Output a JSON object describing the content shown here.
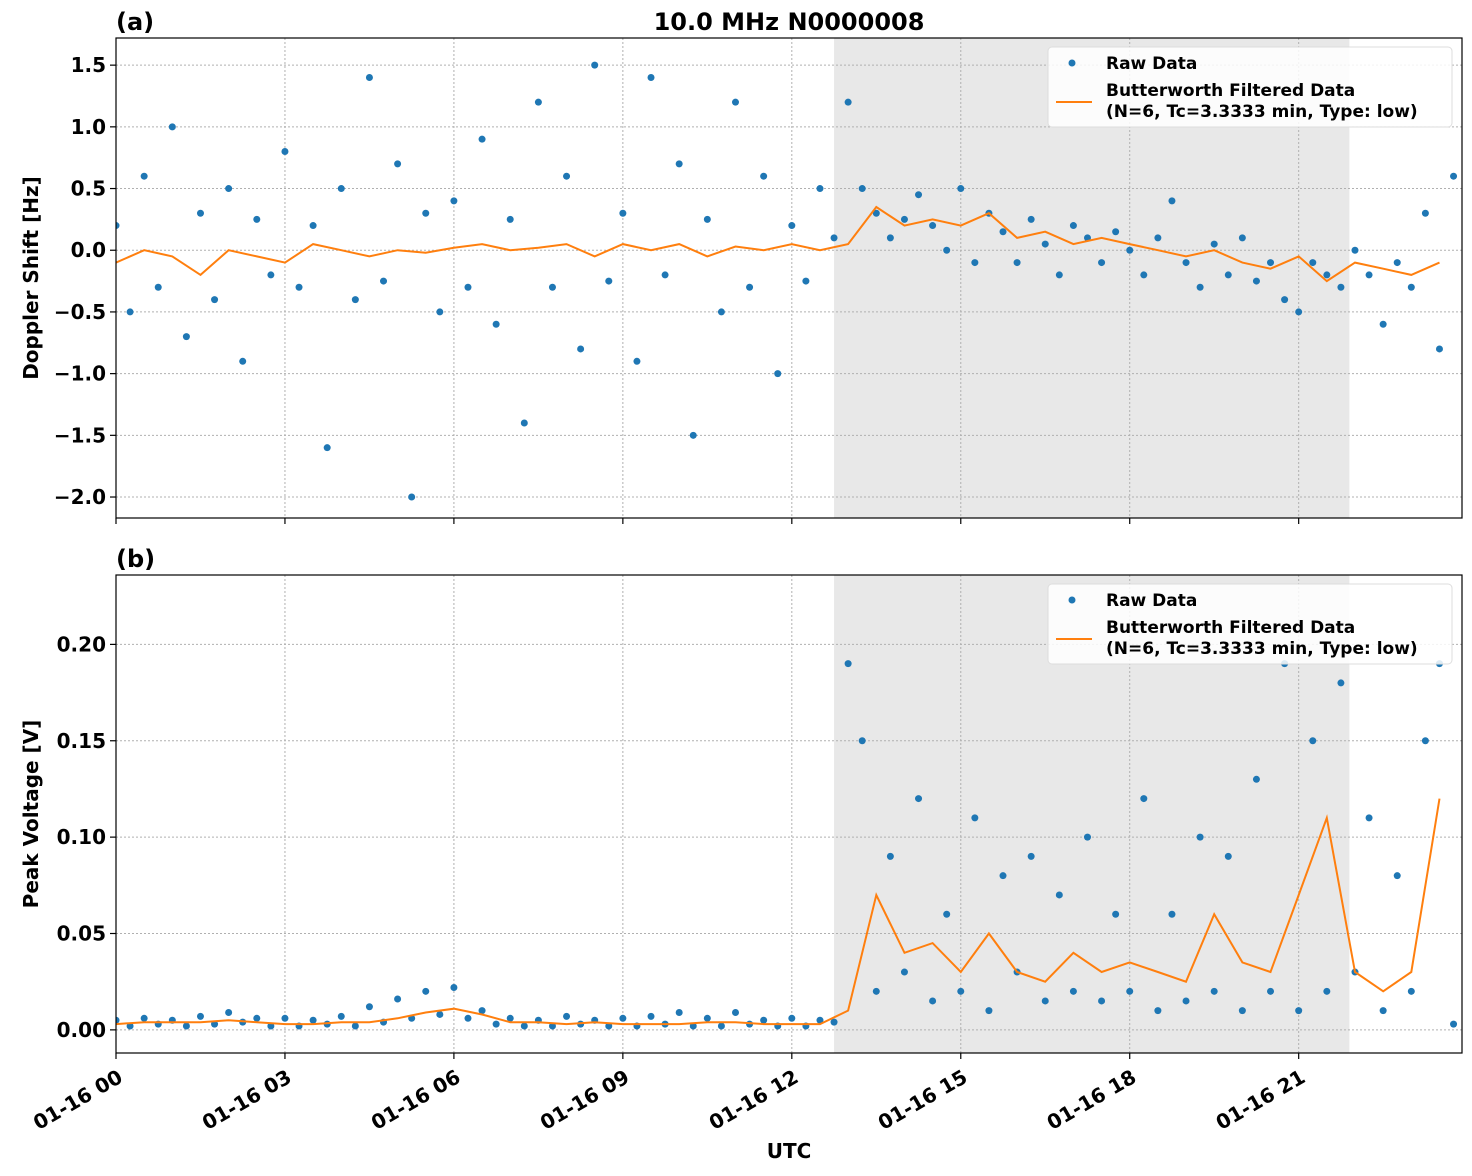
{
  "chart_data": [
    {
      "type": "line",
      "panel_label": "(a)",
      "title": "10.0 MHz N0000008",
      "ylabel": "Doppler Shift [Hz]",
      "xlim": [
        0,
        23.9
      ],
      "ylim": [
        -2.17,
        1.72
      ],
      "yticks": [
        {
          "value": -2,
          "label": "−2.0"
        },
        {
          "value": -1.5,
          "label": "−1.5"
        },
        {
          "value": -1,
          "label": "−1.0"
        },
        {
          "value": -0.5,
          "label": "−0.5"
        },
        {
          "value": 0,
          "label": "0.0"
        },
        0.5,
        {
          "value": 1,
          "label": "1.0"
        },
        1.5
      ],
      "grid": true,
      "shade": [
        12.75,
        21.9
      ],
      "legend": "upper right",
      "series": [
        {
          "name": "Raw Data",
          "mode": "markers",
          "color": "#1f77b4",
          "x": [
            0,
            0.25,
            0.5,
            0.75,
            1,
            1.25,
            1.5,
            1.75,
            2,
            2.25,
            2.5,
            2.75,
            3,
            3.25,
            3.5,
            3.75,
            4,
            4.25,
            4.5,
            4.75,
            5,
            5.25,
            5.5,
            5.75,
            6,
            6.25,
            6.5,
            6.75,
            7,
            7.25,
            7.5,
            7.75,
            8,
            8.25,
            8.5,
            8.75,
            9,
            9.25,
            9.5,
            9.75,
            10,
            10.25,
            10.5,
            10.75,
            11,
            11.25,
            11.5,
            11.75,
            12,
            12.25,
            12.5,
            12.75,
            13,
            13.25,
            13.5,
            13.75,
            14,
            14.25,
            14.5,
            14.75,
            15,
            15.25,
            15.5,
            15.75,
            16,
            16.25,
            16.5,
            16.75,
            17,
            17.25,
            17.5,
            17.75,
            18,
            18.25,
            18.5,
            18.75,
            19,
            19.25,
            19.5,
            19.75,
            20,
            20.25,
            20.5,
            20.75,
            21,
            21.25,
            21.5,
            21.75,
            22,
            22.25,
            22.5,
            22.75,
            23,
            23.25,
            23.5,
            23.75
          ],
          "values": [
            0.2,
            -0.5,
            0.6,
            -0.3,
            1.0,
            -0.7,
            0.3,
            -0.4,
            0.5,
            -0.9,
            0.25,
            -0.2,
            0.8,
            -0.3,
            0.2,
            -1.6,
            0.5,
            -0.4,
            1.4,
            -0.25,
            0.7,
            -2.0,
            0.3,
            -0.5,
            0.4,
            -0.3,
            0.9,
            -0.6,
            0.25,
            -1.4,
            1.2,
            -0.3,
            0.6,
            -0.8,
            1.5,
            -0.25,
            0.3,
            -0.9,
            1.4,
            -0.2,
            0.7,
            -1.5,
            0.25,
            -0.5,
            1.2,
            -0.3,
            0.6,
            -1.0,
            0.2,
            -0.25,
            0.5,
            0.1,
            1.2,
            0.5,
            0.3,
            0.1,
            0.25,
            0.45,
            0.2,
            0.0,
            0.5,
            -0.1,
            0.3,
            0.15,
            -0.1,
            0.25,
            0.05,
            -0.2,
            0.2,
            0.1,
            -0.1,
            0.15,
            0.0,
            -0.2,
            0.1,
            0.4,
            -0.1,
            -0.3,
            0.05,
            -0.2,
            0.1,
            -0.25,
            -0.1,
            -0.4,
            -0.5,
            -0.1,
            -0.2,
            -0.3,
            0.0,
            -0.2,
            -0.6,
            -0.1,
            -0.3,
            0.3,
            -0.8,
            0.6
          ]
        },
        {
          "name": "Butterworth Filtered Data",
          "params": "(N=6, Tc=3.3333 min, Type: low)",
          "mode": "line",
          "color": "#ff7f0e",
          "x": [
            0,
            0.5,
            1,
            1.5,
            2,
            2.5,
            3,
            3.5,
            4,
            4.5,
            5,
            5.5,
            6,
            6.5,
            7,
            7.5,
            8,
            8.5,
            9,
            9.5,
            10,
            10.5,
            11,
            11.5,
            12,
            12.5,
            13,
            13.5,
            14,
            14.5,
            15,
            15.5,
            16,
            16.5,
            17,
            17.5,
            18,
            18.5,
            19,
            19.5,
            20,
            20.5,
            21,
            21.5,
            22,
            22.5,
            23,
            23.5
          ],
          "values": [
            -0.1,
            0.0,
            -0.05,
            -0.2,
            0.0,
            -0.05,
            -0.1,
            0.05,
            0.0,
            -0.05,
            0.0,
            -0.02,
            0.02,
            0.05,
            0.0,
            0.02,
            0.05,
            -0.05,
            0.05,
            0.0,
            0.05,
            -0.05,
            0.03,
            0.0,
            0.05,
            0.0,
            0.05,
            0.35,
            0.2,
            0.25,
            0.2,
            0.3,
            0.1,
            0.15,
            0.05,
            0.1,
            0.05,
            0.0,
            -0.05,
            0.0,
            -0.1,
            -0.15,
            -0.05,
            -0.25,
            -0.1,
            -0.15,
            -0.2,
            -0.1
          ]
        }
      ]
    },
    {
      "type": "line",
      "panel_label": "(b)",
      "ylabel": "Peak Voltage [V]",
      "xlabel": "UTC",
      "xlim": [
        0,
        23.9
      ],
      "ylim": [
        -0.012,
        0.236
      ],
      "xticks": [
        {
          "value": 0,
          "label": "01-16 00"
        },
        {
          "value": 3,
          "label": "01-16 03"
        },
        {
          "value": 6,
          "label": "01-16 06"
        },
        {
          "value": 9,
          "label": "01-16 09"
        },
        {
          "value": 12,
          "label": "01-16 12"
        },
        {
          "value": 15,
          "label": "01-16 15"
        },
        {
          "value": 18,
          "label": "01-16 18"
        },
        {
          "value": 21,
          "label": "01-16 21"
        }
      ],
      "yticks": [
        {
          "value": 0,
          "label": "0.00"
        },
        0.05,
        {
          "value": 0.1,
          "label": "0.10"
        },
        0.15,
        {
          "value": 0.2,
          "label": "0.20"
        }
      ],
      "grid": true,
      "shade": [
        12.75,
        21.9
      ],
      "legend": "upper right",
      "series": [
        {
          "name": "Raw Data",
          "mode": "markers",
          "color": "#1f77b4",
          "x": [
            0,
            0.25,
            0.5,
            0.75,
            1,
            1.25,
            1.5,
            1.75,
            2,
            2.25,
            2.5,
            2.75,
            3,
            3.25,
            3.5,
            3.75,
            4,
            4.25,
            4.5,
            4.75,
            5,
            5.25,
            5.5,
            5.75,
            6,
            6.25,
            6.5,
            6.75,
            7,
            7.25,
            7.5,
            7.75,
            8,
            8.25,
            8.5,
            8.75,
            9,
            9.25,
            9.5,
            9.75,
            10,
            10.25,
            10.5,
            10.75,
            11,
            11.25,
            11.5,
            11.75,
            12,
            12.25,
            12.5,
            12.75,
            13,
            13.25,
            13.5,
            13.75,
            14,
            14.25,
            14.5,
            14.75,
            15,
            15.25,
            15.5,
            15.75,
            16,
            16.25,
            16.5,
            16.75,
            17,
            17.25,
            17.5,
            17.75,
            18,
            18.25,
            18.5,
            18.75,
            19,
            19.25,
            19.5,
            19.75,
            20,
            20.25,
            20.5,
            20.75,
            21,
            21.25,
            21.5,
            21.75,
            22,
            22.25,
            22.5,
            22.75,
            23,
            23.25,
            23.5,
            23.75
          ],
          "values": [
            0.005,
            0.002,
            0.006,
            0.003,
            0.005,
            0.002,
            0.007,
            0.003,
            0.009,
            0.004,
            0.006,
            0.002,
            0.006,
            0.002,
            0.005,
            0.003,
            0.007,
            0.002,
            0.012,
            0.004,
            0.016,
            0.006,
            0.02,
            0.008,
            0.022,
            0.006,
            0.01,
            0.003,
            0.006,
            0.002,
            0.005,
            0.002,
            0.007,
            0.003,
            0.005,
            0.002,
            0.006,
            0.002,
            0.007,
            0.003,
            0.009,
            0.002,
            0.006,
            0.002,
            0.009,
            0.003,
            0.005,
            0.002,
            0.006,
            0.002,
            0.005,
            0.004,
            0.19,
            0.15,
            0.02,
            0.09,
            0.03,
            0.12,
            0.015,
            0.06,
            0.02,
            0.11,
            0.01,
            0.08,
            0.03,
            0.09,
            0.015,
            0.07,
            0.02,
            0.1,
            0.015,
            0.06,
            0.02,
            0.12,
            0.01,
            0.06,
            0.015,
            0.1,
            0.02,
            0.09,
            0.01,
            0.13,
            0.02,
            0.19,
            0.01,
            0.15,
            0.02,
            0.18,
            0.03,
            0.11,
            0.01,
            0.08,
            0.02,
            0.15,
            0.19,
            0.003
          ]
        },
        {
          "name": "Butterworth Filtered Data",
          "params": "(N=6, Tc=3.3333 min, Type: low)",
          "mode": "line",
          "color": "#ff7f0e",
          "x": [
            0,
            0.5,
            1,
            1.5,
            2,
            2.5,
            3,
            3.5,
            4,
            4.5,
            5,
            5.5,
            6,
            6.5,
            7,
            7.5,
            8,
            8.5,
            9,
            9.5,
            10,
            10.5,
            11,
            11.5,
            12,
            12.5,
            13,
            13.5,
            14,
            14.5,
            15,
            15.5,
            16,
            16.5,
            17,
            17.5,
            18,
            18.5,
            19,
            19.5,
            20,
            20.5,
            21,
            21.5,
            22,
            22.5,
            23,
            23.5
          ],
          "values": [
            0.003,
            0.004,
            0.004,
            0.004,
            0.005,
            0.004,
            0.003,
            0.003,
            0.004,
            0.004,
            0.006,
            0.009,
            0.011,
            0.008,
            0.004,
            0.004,
            0.003,
            0.004,
            0.003,
            0.003,
            0.003,
            0.004,
            0.004,
            0.003,
            0.003,
            0.003,
            0.01,
            0.07,
            0.04,
            0.045,
            0.03,
            0.05,
            0.03,
            0.025,
            0.04,
            0.03,
            0.035,
            0.03,
            0.025,
            0.06,
            0.035,
            0.03,
            0.07,
            0.11,
            0.03,
            0.02,
            0.03,
            0.12
          ]
        }
      ]
    }
  ]
}
